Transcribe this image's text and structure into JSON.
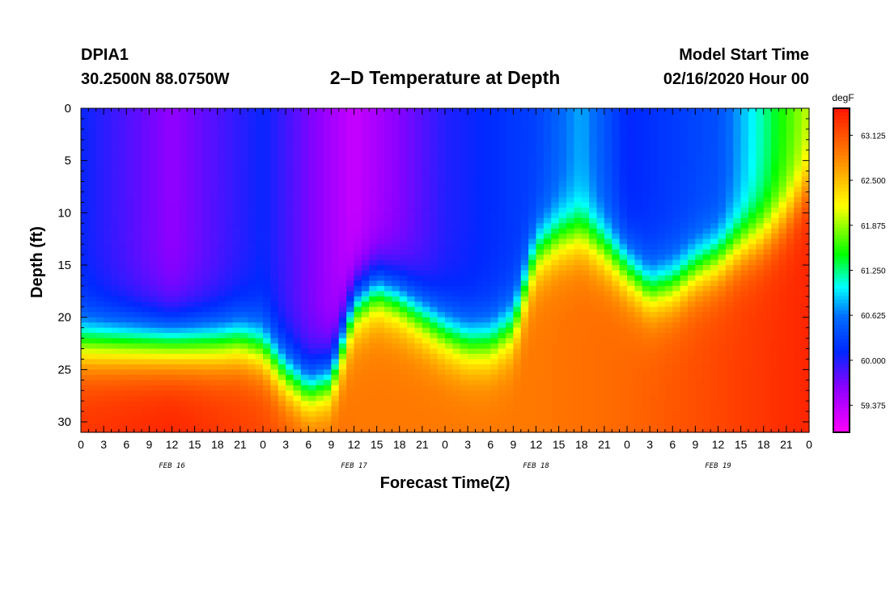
{
  "header": {
    "station": "DPIA1",
    "coords": "30.2500N 88.0750W",
    "title": "2–D Temperature at Depth",
    "model_start_label": "Model Start Time",
    "model_start_value": "02/16/2020 Hour 00"
  },
  "chart_data": {
    "type": "heatmap",
    "xlabel": "Forecast Time(Z)",
    "ylabel": "Depth (ft)",
    "x_tick_labels": [
      "0",
      "3",
      "6",
      "9",
      "12",
      "15",
      "18",
      "21",
      "0",
      "3",
      "6",
      "9",
      "12",
      "15",
      "18",
      "21",
      "0",
      "3",
      "6",
      "9",
      "12",
      "15",
      "18",
      "21",
      "0",
      "3",
      "6",
      "9",
      "12",
      "15",
      "18",
      "21",
      "0"
    ],
    "day_labels": [
      "FEB 16",
      "FEB 17",
      "FEB 18",
      "FEB 19"
    ],
    "xlim_hours": [
      0,
      96
    ],
    "y_ticks": [
      0,
      5,
      10,
      15,
      20,
      25,
      30
    ],
    "ylim_ft": [
      0,
      31
    ],
    "colorbar": {
      "unit": "degF",
      "range": [
        59.0,
        63.5
      ],
      "tick_labels": [
        "63.125",
        "62.500",
        "61.875",
        "61.250",
        "60.625",
        "60.000",
        "59.375"
      ],
      "tick_values": [
        63.125,
        62.5,
        61.875,
        61.25,
        60.625,
        60.0,
        59.375
      ]
    },
    "thermocline_depth_ft": {
      "hours": [
        0,
        6,
        12,
        18,
        21,
        24,
        27,
        30,
        33,
        36,
        39,
        42,
        45,
        48,
        51,
        54,
        57,
        60,
        63,
        66,
        69,
        72,
        75,
        78,
        81,
        84,
        87,
        90,
        93,
        96
      ],
      "depth": [
        22.5,
        22.5,
        22.5,
        22.5,
        22.3,
        23.0,
        25.5,
        27.0,
        26.0,
        19.0,
        17.5,
        18.5,
        20.0,
        21.5,
        22.5,
        22.5,
        21.0,
        14.0,
        12.5,
        12.0,
        13.5,
        15.5,
        17.5,
        17.0,
        15.5,
        14.5,
        13.0,
        12.0,
        10.0,
        7.0
      ]
    },
    "surface_temp_degF": {
      "hours": [
        0,
        12,
        24,
        36,
        48,
        60,
        66,
        72,
        84,
        90,
        96
      ],
      "temp": [
        60.1,
        59.6,
        60.1,
        59.3,
        60.0,
        60.3,
        60.8,
        60.1,
        60.4,
        61.2,
        62.0
      ]
    },
    "bottom_temp_degF": {
      "hours": [
        0,
        12,
        24,
        36,
        48,
        60,
        72,
        84,
        96
      ],
      "temp": [
        63.3,
        63.4,
        63.2,
        62.9,
        62.9,
        62.9,
        63.0,
        63.2,
        63.4
      ]
    }
  }
}
